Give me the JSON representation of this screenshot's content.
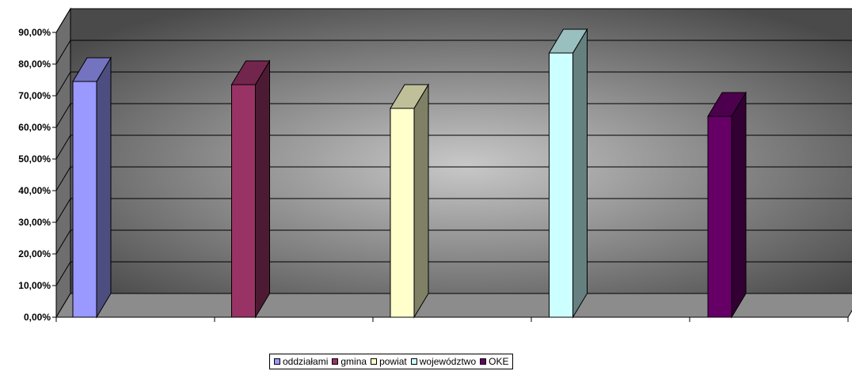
{
  "chart_data": {
    "type": "bar",
    "three_d": true,
    "categories": [
      "oddziałami",
      "gmina",
      "powiat",
      "województwo",
      "OKE"
    ],
    "values": [
      74.5,
      73.5,
      66.0,
      83.5,
      63.5
    ],
    "ylim": [
      0,
      90
    ],
    "yticks": [
      "0,00%",
      "10,00%",
      "20,00%",
      "30,00%",
      "40,00%",
      "50,00%",
      "60,00%",
      "70,00%",
      "80,00%",
      "90,00%"
    ],
    "grid": true,
    "legend_position": "bottom",
    "title": "",
    "xlabel": "",
    "ylabel": "",
    "colors": {
      "front": [
        "#9999FF",
        "#993366",
        "#FFFFCC",
        "#CCFFFF",
        "#660066"
      ],
      "side": [
        "#4D4D80",
        "#4D1A33",
        "#808066",
        "#668080",
        "#330033"
      ],
      "top": [
        "#7373BF",
        "#73264D",
        "#BFBF99",
        "#99BFBF",
        "#4D004D"
      ],
      "wall_light": "#C8C8C8",
      "wall_dark": "#4A4A4A",
      "floor": "#8C8C8C"
    }
  },
  "legend": {
    "items": [
      {
        "label": "oddziałami"
      },
      {
        "label": "gmina"
      },
      {
        "label": "powiat"
      },
      {
        "label": "województwo"
      },
      {
        "label": "OKE"
      }
    ]
  }
}
